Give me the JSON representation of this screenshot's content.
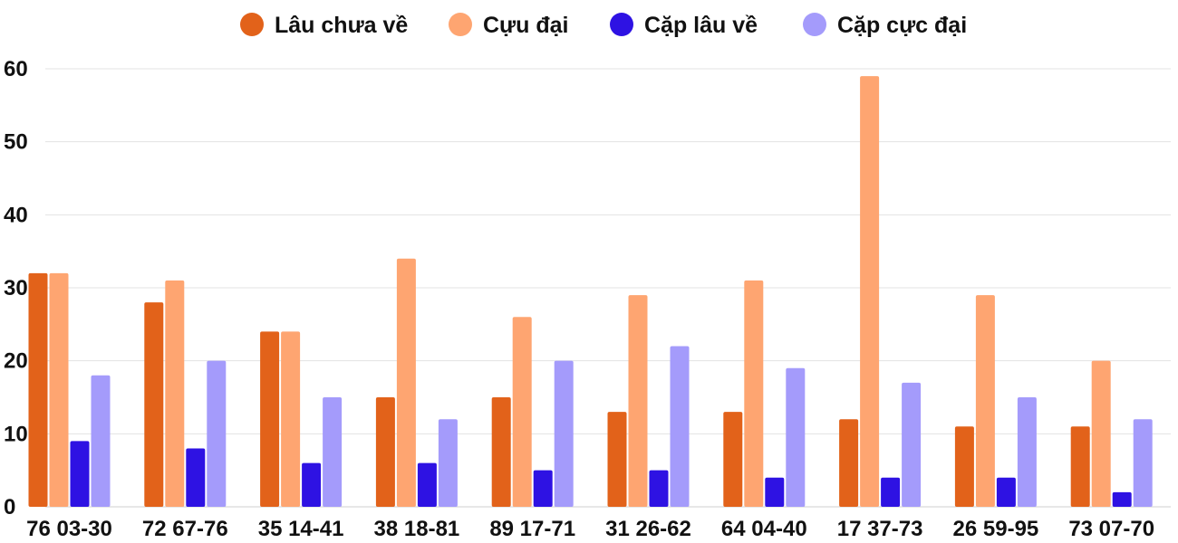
{
  "chart_data": {
    "type": "bar",
    "categories": [
      "76 03-30",
      "72 67-76",
      "35 14-41",
      "38 18-81",
      "89 17-71",
      "31 26-62",
      "64 04-40",
      "17 37-73",
      "26 59-95",
      "73 07-70"
    ],
    "series": [
      {
        "name": "Lâu chưa về",
        "color": "#e2621a",
        "values": [
          32,
          28,
          24,
          15,
          15,
          13,
          13,
          12,
          11,
          11
        ]
      },
      {
        "name": "Cựu đại",
        "color": "#fea571",
        "values": [
          32,
          31,
          24,
          34,
          26,
          29,
          31,
          59,
          29,
          20
        ]
      },
      {
        "name": "Cặp lâu về",
        "color": "#2e12e3",
        "values": [
          9,
          8,
          6,
          6,
          5,
          5,
          4,
          4,
          4,
          2
        ]
      },
      {
        "name": "Cặp cực đại",
        "color": "#a49bfb",
        "values": [
          18,
          20,
          15,
          12,
          20,
          22,
          19,
          17,
          15,
          12
        ]
      }
    ],
    "ylim": [
      0,
      60
    ],
    "yticks": [
      0,
      10,
      20,
      30,
      40,
      50,
      60
    ],
    "grid": true,
    "legend": "top-center",
    "title": "",
    "xlabel": "",
    "ylabel": ""
  }
}
